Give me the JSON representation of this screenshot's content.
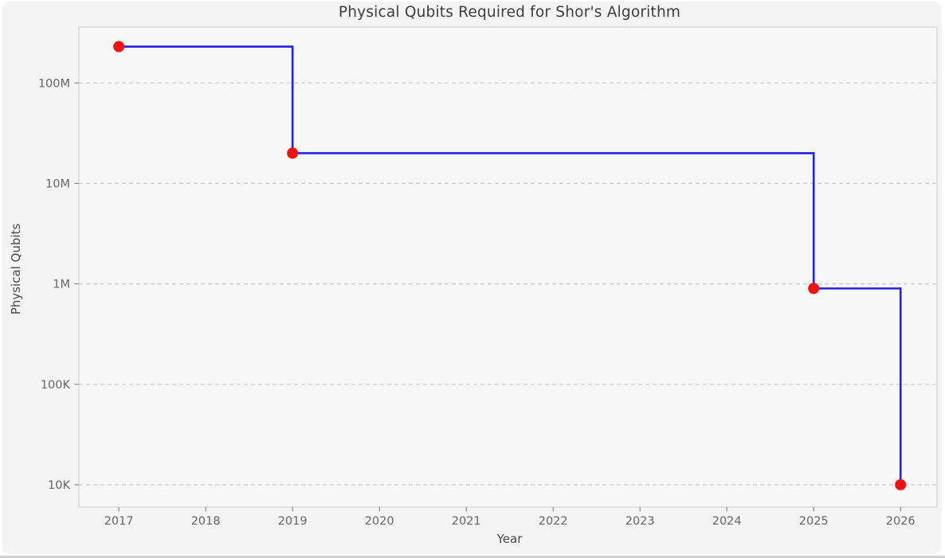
{
  "figure": {
    "canvas_background": "#ffffff",
    "background": "#f4f4f5",
    "plot_background": "#f7f7f8",
    "spine_color": "#d9d9db",
    "bottom_edge_color": "#ababab"
  },
  "chart_data": {
    "type": "line",
    "drawstyle": "steps-post",
    "title": "Physical Qubits Required for Shor's Algorithm",
    "xlabel": "Year",
    "ylabel": "Physical Qubits",
    "yscale": "log",
    "grid": "horizontal-dashed",
    "x": [
      2017,
      2019,
      2025,
      2026
    ],
    "y": [
      230000000,
      20000000,
      900000,
      10000
    ],
    "x_ticks": [
      2017,
      2018,
      2019,
      2020,
      2021,
      2022,
      2023,
      2024,
      2025,
      2026
    ],
    "y_ticks": [
      {
        "value": 10000,
        "label": "10K"
      },
      {
        "value": 100000,
        "label": "100K"
      },
      {
        "value": 1000000,
        "label": "1M"
      },
      {
        "value": 10000000,
        "label": "10M"
      },
      {
        "value": 100000000,
        "label": "100M"
      }
    ],
    "xlim": [
      2016.54,
      2026.42
    ],
    "ylim": [
      6000,
      360000000
    ],
    "line_color": "#2323dd",
    "line_width": 2.6,
    "marker_color": "#ee1414",
    "marker_radius": 7,
    "grid_color": "#c9c9cb",
    "tick_mark_color": "#8a8a8a",
    "tick_label_color": "#666666",
    "title_color": "#3d3d3d",
    "axis_label_color": "#4a4a4a"
  }
}
